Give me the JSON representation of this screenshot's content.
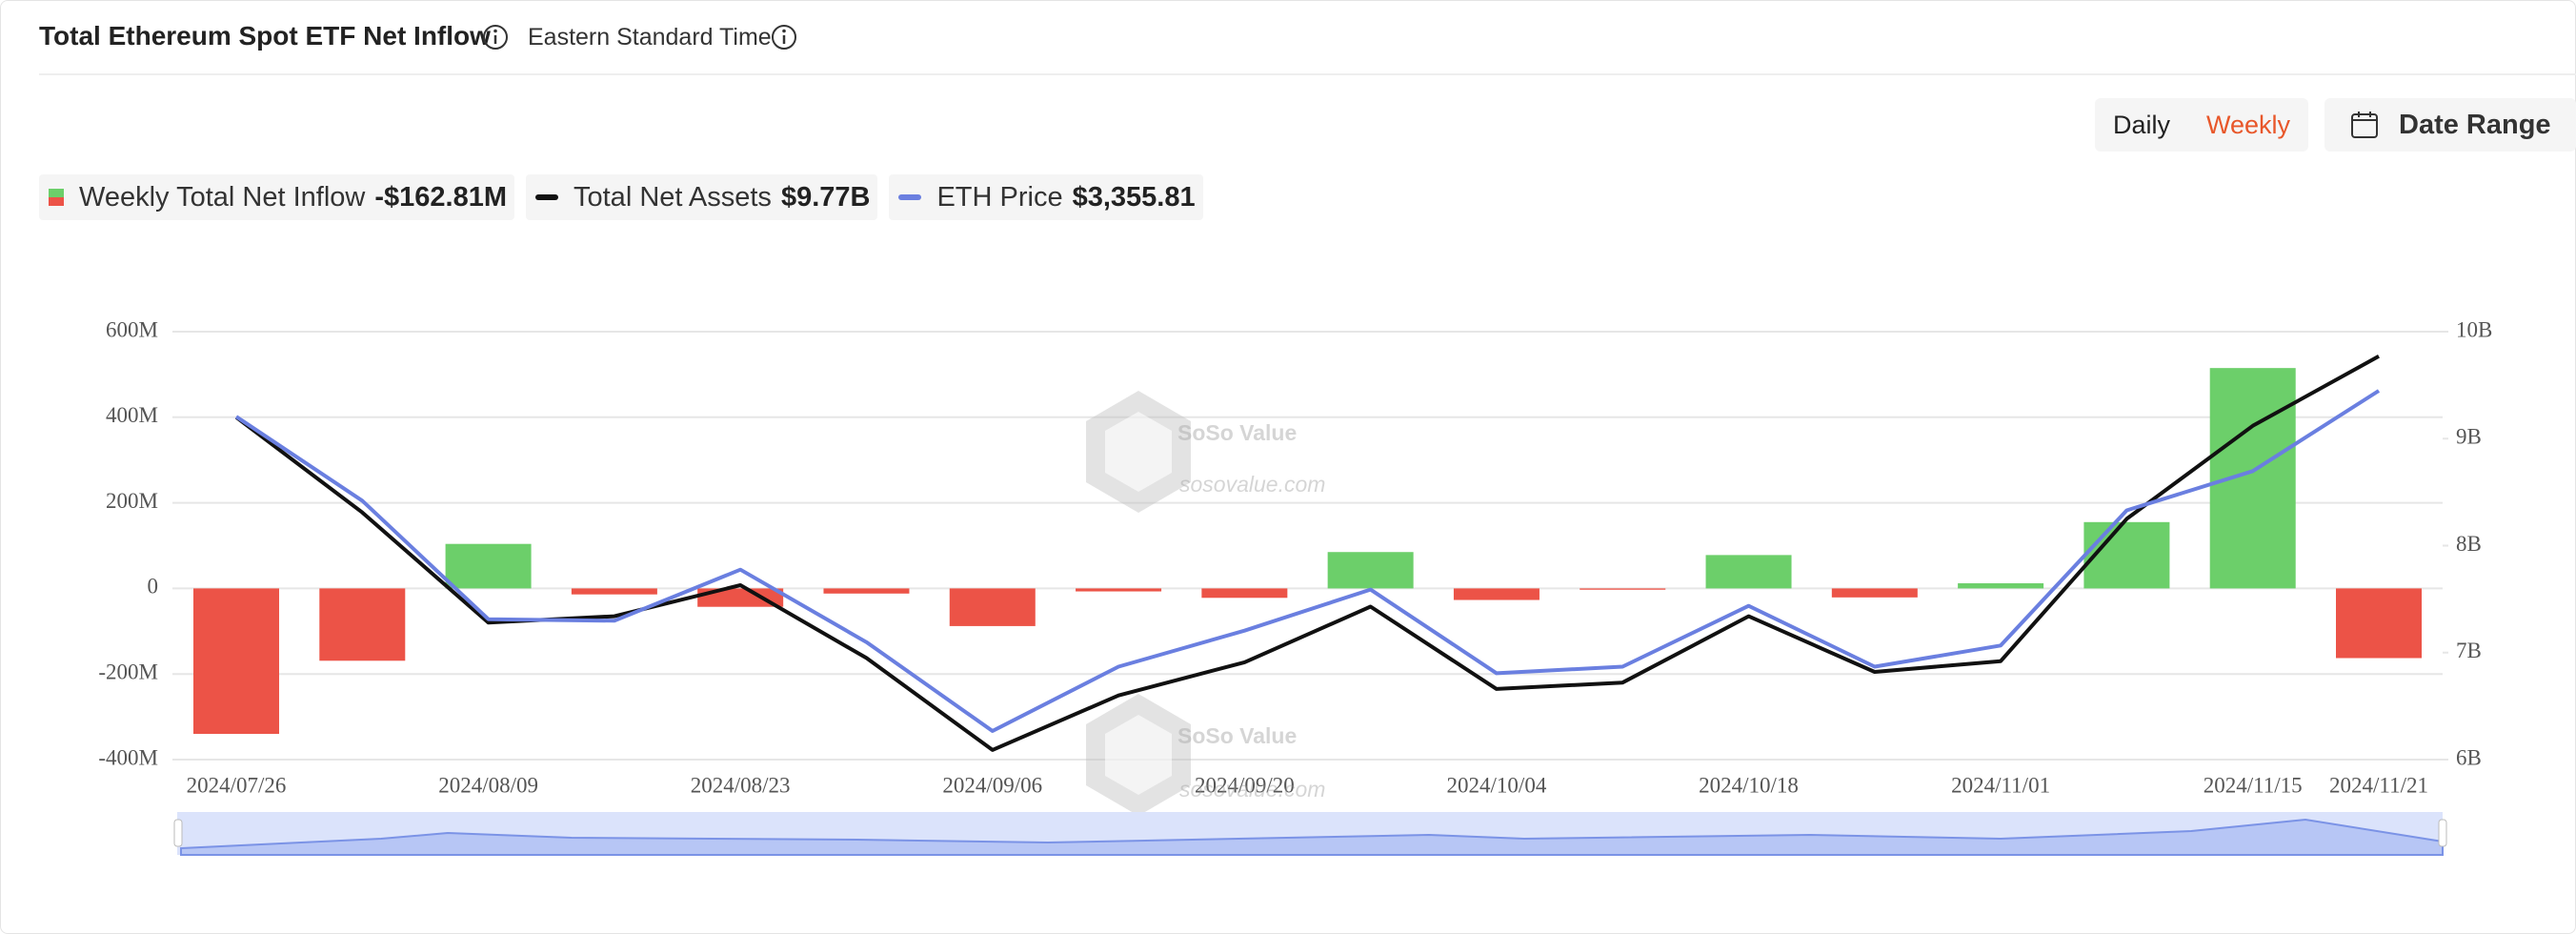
{
  "header": {
    "title": "Total Ethereum Spot ETF Net Inflow",
    "timezone": "Eastern Standard Time"
  },
  "controls": {
    "periods": [
      "Daily",
      "Weekly"
    ],
    "date_range": "Date Range"
  },
  "watermark": {
    "brand": "SoSo Value",
    "site": "sosovalue.com"
  },
  "chart_data": {
    "type": "bar",
    "categories": [
      "2024/07/26",
      null,
      "2024/08/09",
      null,
      "2024/08/23",
      null,
      "2024/09/06",
      null,
      "2024/09/20",
      null,
      "2024/10/04",
      null,
      "2024/10/18",
      null,
      "2024/11/01",
      null,
      "2024/11/15",
      "2024/11/21"
    ],
    "series": [
      {
        "name": "Weekly Total Net Inflow",
        "type": "bar",
        "positive_color": "#6ccf6a",
        "negative_color": "#ec5347",
        "latest_label": "-$162.81M",
        "values": [
          -340,
          -169,
          104,
          -14,
          -43,
          -12,
          -88,
          -7,
          -22,
          85,
          -27,
          -3,
          78,
          -21,
          12,
          155,
          515,
          -162.81
        ]
      },
      {
        "name": "Total Net Assets",
        "type": "line",
        "axis": "y2",
        "color": "#111111",
        "latest_label": "$9.77B",
        "values": [
          9.2,
          8.31,
          7.28,
          7.34,
          7.63,
          6.95,
          6.09,
          6.6,
          6.91,
          7.43,
          6.66,
          6.72,
          7.34,
          6.82,
          6.92,
          8.25,
          9.12,
          9.77
        ]
      },
      {
        "name": "ETH Price",
        "type": "line",
        "color": "#6a7fe0",
        "latest_label": "$3,355.81",
        "values": [
          3270,
          2992,
          2600,
          2595,
          2764,
          2524,
          2230,
          2443,
          2562,
          2698,
          2421,
          2443,
          2644,
          2443,
          2513,
          2960,
          3090,
          3355.81
        ]
      }
    ],
    "ylim": [
      -400,
      600
    ],
    "yticks": [
      {
        "value": -400,
        "label": "-400M"
      },
      {
        "value": -200,
        "label": "-200M"
      },
      0,
      {
        "value": 200,
        "label": "200M"
      },
      {
        "value": 400,
        "label": "400M"
      },
      {
        "value": 600,
        "label": "600M"
      }
    ],
    "y2lim": [
      6,
      10
    ],
    "y2ticks": [
      {
        "value": 6,
        "label": "6B"
      },
      {
        "value": 7,
        "label": "7B"
      },
      {
        "value": 8,
        "label": "8B"
      },
      {
        "value": 9,
        "label": "9B"
      },
      {
        "value": 10,
        "label": "10B"
      }
    ],
    "grid": true
  }
}
